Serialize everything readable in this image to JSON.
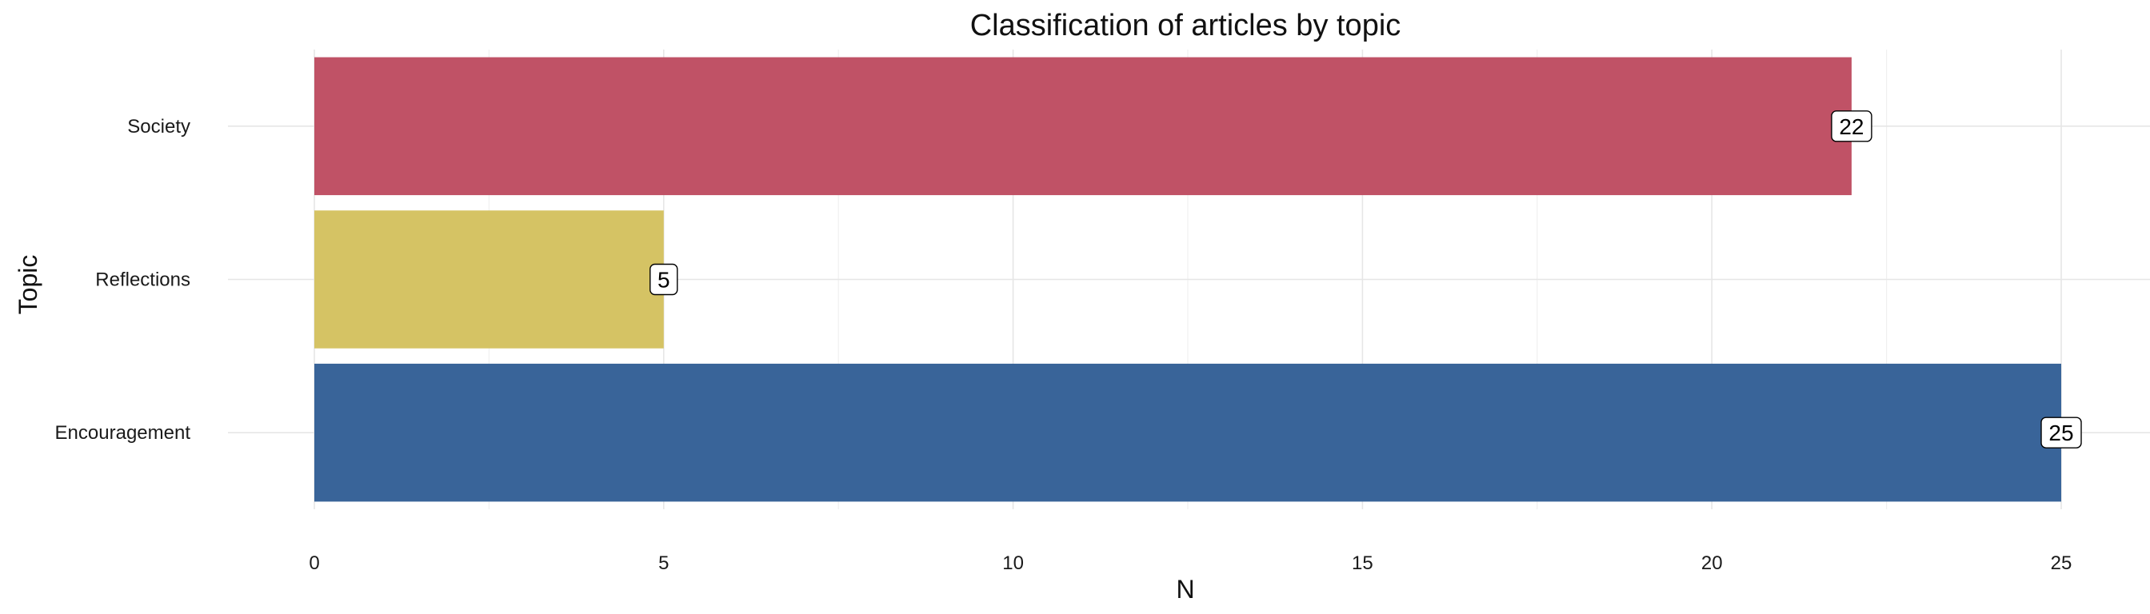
{
  "chart_data": {
    "type": "bar",
    "orientation": "horizontal",
    "title": "Classification of articles by topic",
    "xlabel": "N",
    "ylabel": "Topic",
    "categories": [
      "Encouragement",
      "Reflections",
      "Society"
    ],
    "values": [
      25,
      5,
      22
    ],
    "data_labels": [
      "25",
      "5",
      "22"
    ],
    "colors": [
      "#396499",
      "#d5c364",
      "#c05266"
    ],
    "xlim": [
      0,
      25
    ],
    "x_ticks": [
      0,
      5,
      10,
      15,
      20,
      25
    ],
    "x_tick_labels": [
      "0",
      "5",
      "10",
      "15",
      "20",
      "25"
    ],
    "grid": true,
    "legend": "none"
  }
}
